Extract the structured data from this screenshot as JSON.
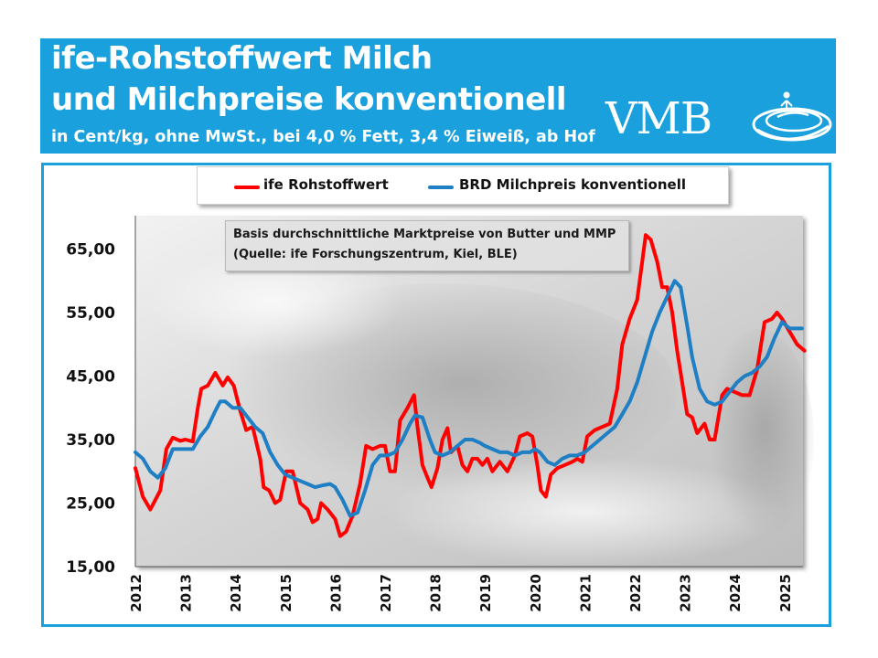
{
  "header": {
    "title_line1": "ife-Rohstoffwert Milch",
    "title_line2": "und Milchpreise konventionell",
    "subtitle": "in Cent/kg, ohne MwSt., bei 4,0 % Fett, 3,4 % Eiweiß, ab Hof",
    "logo_text": "VMB",
    "logo_icon": "vmb-wave-logo-icon",
    "banner_color": "#1aa1dd"
  },
  "annotation": {
    "line1": "Basis durchschnittliche Marktpreise von Butter und MMP",
    "line2": "(Quelle: ife Forschungszentrum, Kiel, BLE)"
  },
  "chart_data": {
    "type": "line",
    "title": "ife-Rohstoffwert Milch und Milchpreise konventionell",
    "subtitle": "in Cent/kg, ohne MwSt., bei 4,0 % Fett, 3,4 % Eiweiß, ab Hof",
    "xlabel": "",
    "ylabel": "",
    "ylim": [
      15,
      70
    ],
    "xlim": [
      2012,
      2025.5
    ],
    "y_ticks": [
      "15,00",
      "25,00",
      "35,00",
      "45,00",
      "55,00",
      "65,00"
    ],
    "x_ticks": [
      "2012",
      "2013",
      "2014",
      "2015",
      "2016",
      "2017",
      "2018",
      "2019",
      "2020",
      "2021",
      "2022",
      "2023",
      "2024",
      "2025"
    ],
    "grid": false,
    "legend_position": "top",
    "series": [
      {
        "name": "ife Rohstoffwert",
        "color": "#ff0000",
        "points": [
          [
            2012.0,
            30.5
          ],
          [
            2012.15,
            26.0
          ],
          [
            2012.3,
            24.0
          ],
          [
            2012.5,
            27.0
          ],
          [
            2012.62,
            33.5
          ],
          [
            2012.75,
            35.3
          ],
          [
            2012.9,
            34.8
          ],
          [
            2013.0,
            35.0
          ],
          [
            2013.15,
            34.7
          ],
          [
            2013.25,
            40.0
          ],
          [
            2013.32,
            43.0
          ],
          [
            2013.45,
            43.5
          ],
          [
            2013.6,
            45.5
          ],
          [
            2013.75,
            43.5
          ],
          [
            2013.85,
            44.8
          ],
          [
            2013.97,
            43.5
          ],
          [
            2014.1,
            39.5
          ],
          [
            2014.22,
            36.5
          ],
          [
            2014.35,
            37.0
          ],
          [
            2014.5,
            32.0
          ],
          [
            2014.57,
            27.5
          ],
          [
            2014.68,
            27.0
          ],
          [
            2014.8,
            25.0
          ],
          [
            2014.9,
            25.5
          ],
          [
            2015.02,
            30.0
          ],
          [
            2015.15,
            30.0
          ],
          [
            2015.3,
            25.0
          ],
          [
            2015.45,
            24.0
          ],
          [
            2015.55,
            22.0
          ],
          [
            2015.65,
            22.5
          ],
          [
            2015.72,
            25.0
          ],
          [
            2015.85,
            24.0
          ],
          [
            2016.0,
            22.5
          ],
          [
            2016.1,
            19.8
          ],
          [
            2016.22,
            20.5
          ],
          [
            2016.35,
            23.0
          ],
          [
            2016.5,
            28.0
          ],
          [
            2016.62,
            34.0
          ],
          [
            2016.75,
            33.5
          ],
          [
            2016.9,
            34.0
          ],
          [
            2017.0,
            34.0
          ],
          [
            2017.1,
            30.0
          ],
          [
            2017.2,
            30.0
          ],
          [
            2017.3,
            38.0
          ],
          [
            2017.45,
            40.0
          ],
          [
            2017.58,
            42.0
          ],
          [
            2017.65,
            37.0
          ],
          [
            2017.75,
            31.0
          ],
          [
            2017.85,
            29.0
          ],
          [
            2017.93,
            27.5
          ],
          [
            2018.05,
            30.5
          ],
          [
            2018.15,
            35.0
          ],
          [
            2018.25,
            36.8
          ],
          [
            2018.32,
            33.0
          ],
          [
            2018.45,
            34.0
          ],
          [
            2018.55,
            31.0
          ],
          [
            2018.65,
            30.0
          ],
          [
            2018.75,
            32.0
          ],
          [
            2018.85,
            32.0
          ],
          [
            2018.95,
            31.0
          ],
          [
            2019.05,
            32.0
          ],
          [
            2019.15,
            30.0
          ],
          [
            2019.3,
            31.5
          ],
          [
            2019.45,
            30.0
          ],
          [
            2019.6,
            32.5
          ],
          [
            2019.7,
            35.5
          ],
          [
            2019.85,
            36.0
          ],
          [
            2019.95,
            35.5
          ],
          [
            2020.05,
            31.0
          ],
          [
            2020.12,
            27.0
          ],
          [
            2020.22,
            26.0
          ],
          [
            2020.32,
            29.5
          ],
          [
            2020.45,
            30.5
          ],
          [
            2020.6,
            31.0
          ],
          [
            2020.75,
            31.5
          ],
          [
            2020.85,
            32.0
          ],
          [
            2020.95,
            31.5
          ],
          [
            2021.05,
            35.5
          ],
          [
            2021.2,
            36.5
          ],
          [
            2021.35,
            37.0
          ],
          [
            2021.5,
            37.5
          ],
          [
            2021.65,
            43.0
          ],
          [
            2021.75,
            50.0
          ],
          [
            2021.9,
            54.0
          ],
          [
            2022.05,
            57.0
          ],
          [
            2022.15,
            63.0
          ],
          [
            2022.22,
            67.2
          ],
          [
            2022.32,
            66.5
          ],
          [
            2022.45,
            63.0
          ],
          [
            2022.55,
            59.0
          ],
          [
            2022.65,
            59.0
          ],
          [
            2022.75,
            55.0
          ],
          [
            2022.85,
            49.0
          ],
          [
            2022.97,
            43.0
          ],
          [
            2023.05,
            39.0
          ],
          [
            2023.15,
            38.5
          ],
          [
            2023.25,
            36.0
          ],
          [
            2023.4,
            37.5
          ],
          [
            2023.5,
            35.0
          ],
          [
            2023.6,
            35.0
          ],
          [
            2023.75,
            42.0
          ],
          [
            2023.85,
            43.0
          ],
          [
            2024.0,
            42.5
          ],
          [
            2024.15,
            42.0
          ],
          [
            2024.3,
            42.0
          ],
          [
            2024.45,
            46.0
          ],
          [
            2024.6,
            53.5
          ],
          [
            2024.75,
            54.0
          ],
          [
            2024.85,
            55.0
          ],
          [
            2024.95,
            54.0
          ],
          [
            2025.1,
            52.0
          ],
          [
            2025.25,
            50.0
          ],
          [
            2025.4,
            49.0
          ]
        ]
      },
      {
        "name": "BRD Milchpreis konventionell",
        "color": "#1f7fc4",
        "points": [
          [
            2012.0,
            33.0
          ],
          [
            2012.15,
            32.0
          ],
          [
            2012.3,
            30.0
          ],
          [
            2012.45,
            29.0
          ],
          [
            2012.6,
            30.5
          ],
          [
            2012.75,
            33.5
          ],
          [
            2012.9,
            33.5
          ],
          [
            2013.05,
            33.5
          ],
          [
            2013.15,
            33.5
          ],
          [
            2013.3,
            35.5
          ],
          [
            2013.45,
            37.0
          ],
          [
            2013.6,
            39.5
          ],
          [
            2013.7,
            41.0
          ],
          [
            2013.8,
            41.0
          ],
          [
            2013.95,
            40.0
          ],
          [
            2014.1,
            40.0
          ],
          [
            2014.25,
            38.5
          ],
          [
            2014.4,
            37.0
          ],
          [
            2014.55,
            36.0
          ],
          [
            2014.7,
            33.0
          ],
          [
            2014.85,
            31.0
          ],
          [
            2015.0,
            29.5
          ],
          [
            2015.15,
            29.0
          ],
          [
            2015.3,
            28.5
          ],
          [
            2015.45,
            28.0
          ],
          [
            2015.6,
            27.5
          ],
          [
            2015.75,
            27.8
          ],
          [
            2015.9,
            28.0
          ],
          [
            2016.0,
            27.5
          ],
          [
            2016.15,
            25.5
          ],
          [
            2016.3,
            23.0
          ],
          [
            2016.45,
            23.5
          ],
          [
            2016.6,
            27.0
          ],
          [
            2016.75,
            31.0
          ],
          [
            2016.9,
            32.5
          ],
          [
            2017.05,
            32.5
          ],
          [
            2017.2,
            33.0
          ],
          [
            2017.35,
            35.0
          ],
          [
            2017.5,
            37.5
          ],
          [
            2017.6,
            38.8
          ],
          [
            2017.75,
            38.5
          ],
          [
            2017.9,
            35.0
          ],
          [
            2018.0,
            33.0
          ],
          [
            2018.15,
            32.5
          ],
          [
            2018.3,
            33.0
          ],
          [
            2018.45,
            34.0
          ],
          [
            2018.6,
            35.0
          ],
          [
            2018.75,
            35.0
          ],
          [
            2018.9,
            34.5
          ],
          [
            2019.0,
            34.0
          ],
          [
            2019.15,
            33.5
          ],
          [
            2019.3,
            33.0
          ],
          [
            2019.45,
            33.0
          ],
          [
            2019.6,
            32.5
          ],
          [
            2019.75,
            33.0
          ],
          [
            2019.9,
            33.0
          ],
          [
            2020.0,
            33.5
          ],
          [
            2020.1,
            33.0
          ],
          [
            2020.25,
            31.5
          ],
          [
            2020.4,
            31.0
          ],
          [
            2020.55,
            32.0
          ],
          [
            2020.7,
            32.5
          ],
          [
            2020.85,
            32.5
          ],
          [
            2021.0,
            33.0
          ],
          [
            2021.15,
            34.0
          ],
          [
            2021.3,
            35.0
          ],
          [
            2021.45,
            36.0
          ],
          [
            2021.6,
            37.0
          ],
          [
            2021.75,
            39.0
          ],
          [
            2021.9,
            41.0
          ],
          [
            2022.05,
            44.0
          ],
          [
            2022.2,
            48.0
          ],
          [
            2022.35,
            52.0
          ],
          [
            2022.5,
            55.0
          ],
          [
            2022.65,
            57.5
          ],
          [
            2022.8,
            60.0
          ],
          [
            2022.92,
            59.0
          ],
          [
            2023.05,
            53.0
          ],
          [
            2023.15,
            48.0
          ],
          [
            2023.3,
            43.0
          ],
          [
            2023.45,
            41.0
          ],
          [
            2023.6,
            40.5
          ],
          [
            2023.75,
            41.0
          ],
          [
            2023.9,
            42.5
          ],
          [
            2024.05,
            44.0
          ],
          [
            2024.2,
            45.0
          ],
          [
            2024.35,
            45.5
          ],
          [
            2024.5,
            46.5
          ],
          [
            2024.65,
            48.0
          ],
          [
            2024.8,
            51.0
          ],
          [
            2024.95,
            53.5
          ],
          [
            2025.1,
            52.5
          ],
          [
            2025.25,
            52.5
          ],
          [
            2025.35,
            52.5
          ]
        ]
      }
    ]
  }
}
